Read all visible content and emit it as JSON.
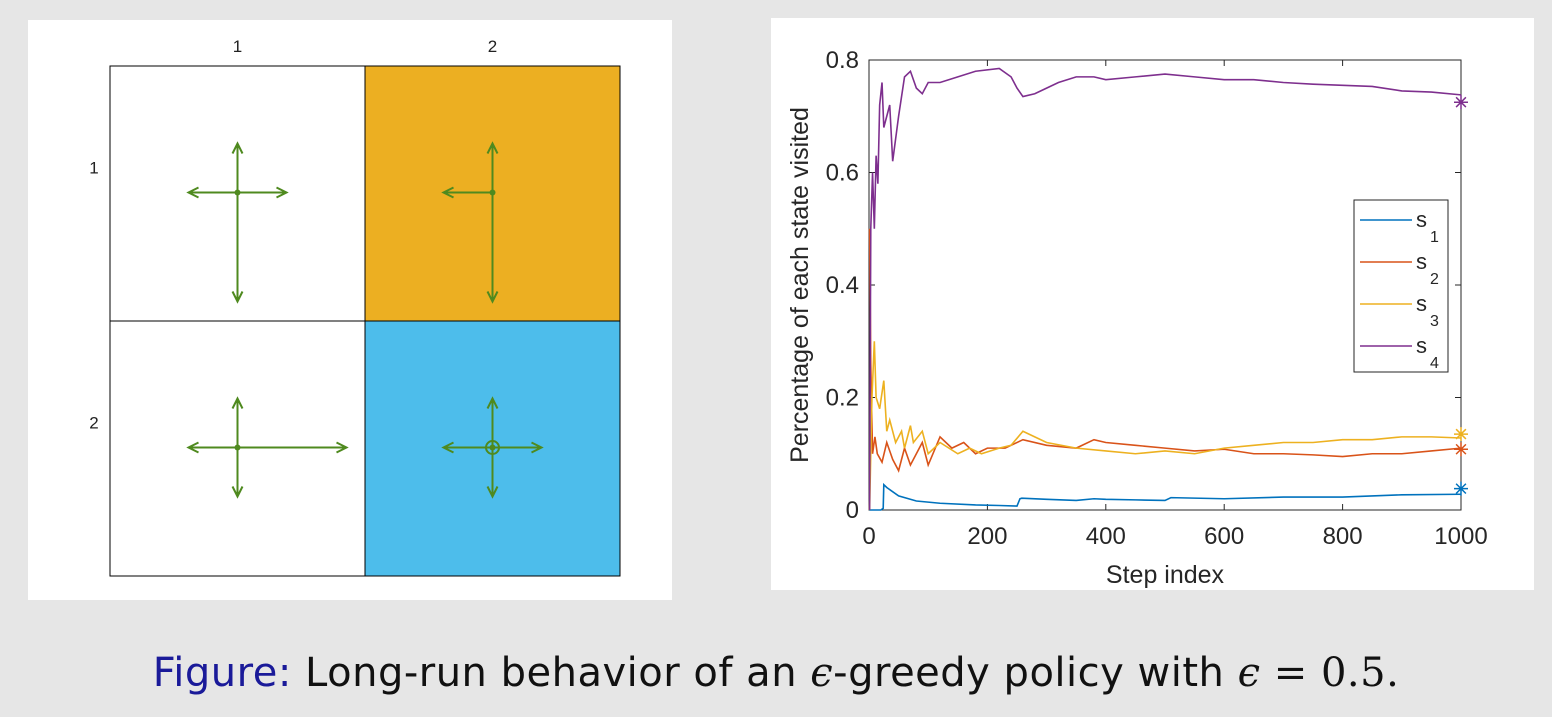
{
  "grid": {
    "col_labels": [
      "1",
      "2"
    ],
    "row_labels": [
      "1",
      "2"
    ],
    "cells": [
      {
        "row": 1,
        "col": 1,
        "color": "#ffffff",
        "arrows": {
          "up": 0.125,
          "down": 0.625,
          "left": 0.125,
          "right": 0.125,
          "stay": 0
        }
      },
      {
        "row": 1,
        "col": 2,
        "color": "#ecaf22",
        "arrows": {
          "up": 0.125,
          "down": 0.625,
          "left": 0.125,
          "right": 0,
          "stay": 0
        }
      },
      {
        "row": 2,
        "col": 1,
        "color": "#ffffff",
        "arrows": {
          "up": 0.125,
          "down": 0.125,
          "left": 0.125,
          "right": 0.625,
          "stay": 0
        }
      },
      {
        "row": 2,
        "col": 2,
        "color": "#4dbdeb",
        "arrows": {
          "up": 0.125,
          "down": 0.125,
          "left": 0.125,
          "right": 0.125,
          "stay": 0.5
        }
      }
    ],
    "arrow_color": "#4f8a1f"
  },
  "chart_data": {
    "type": "line",
    "xlabel": "Step index",
    "ylabel": "Percentage of each state visited",
    "xlim": [
      0,
      1000
    ],
    "ylim": [
      0,
      0.8
    ],
    "xticks": [
      0,
      200,
      400,
      600,
      800,
      1000
    ],
    "yticks": [
      0,
      0.2,
      0.4,
      0.6,
      0.8
    ],
    "ytick_labels": [
      "0",
      "0.2",
      "0.4",
      "0.6",
      "0.8"
    ],
    "grid": false,
    "legend_position": "right, middle",
    "series": [
      {
        "name": "s",
        "subscript": "1",
        "color": "#0072bd",
        "x": [
          1,
          20,
          24,
          25,
          30,
          50,
          80,
          120,
          180,
          220,
          250,
          255,
          258,
          300,
          350,
          380,
          400,
          450,
          500,
          510,
          600,
          700,
          800,
          900,
          1000
        ],
        "y": [
          0,
          0,
          0.003,
          0.045,
          0.04,
          0.025,
          0.016,
          0.012,
          0.009,
          0.008,
          0.007,
          0.02,
          0.021,
          0.019,
          0.017,
          0.02,
          0.019,
          0.018,
          0.017,
          0.022,
          0.02,
          0.023,
          0.023,
          0.027,
          0.028
        ],
        "end_marker": 0.038
      },
      {
        "name": "s",
        "subscript": "2",
        "color": "#d95319",
        "x": [
          1,
          3,
          6,
          10,
          14,
          22,
          30,
          40,
          50,
          60,
          70,
          80,
          90,
          100,
          120,
          140,
          160,
          180,
          200,
          230,
          260,
          300,
          350,
          380,
          400,
          450,
          500,
          550,
          600,
          650,
          700,
          750,
          800,
          850,
          900,
          950,
          1000
        ],
        "y": [
          0.5,
          0.26,
          0.1,
          0.13,
          0.1,
          0.085,
          0.12,
          0.09,
          0.07,
          0.11,
          0.08,
          0.1,
          0.12,
          0.08,
          0.13,
          0.11,
          0.12,
          0.1,
          0.11,
          0.11,
          0.125,
          0.115,
          0.11,
          0.125,
          0.12,
          0.115,
          0.11,
          0.105,
          0.108,
          0.1,
          0.1,
          0.098,
          0.095,
          0.1,
          0.1,
          0.105,
          0.11
        ],
        "end_marker": 0.108
      },
      {
        "name": "s",
        "subscript": "3",
        "color": "#edb120",
        "x": [
          1,
          5,
          9,
          12,
          18,
          25,
          30,
          35,
          45,
          55,
          60,
          70,
          75,
          90,
          100,
          120,
          150,
          170,
          190,
          220,
          240,
          260,
          280,
          300,
          350,
          400,
          450,
          500,
          550,
          600,
          650,
          700,
          750,
          800,
          850,
          900,
          950,
          1000
        ],
        "y": [
          0,
          0.2,
          0.3,
          0.2,
          0.18,
          0.23,
          0.14,
          0.16,
          0.12,
          0.14,
          0.11,
          0.15,
          0.12,
          0.14,
          0.1,
          0.12,
          0.1,
          0.11,
          0.1,
          0.11,
          0.115,
          0.14,
          0.13,
          0.12,
          0.11,
          0.105,
          0.1,
          0.105,
          0.1,
          0.11,
          0.115,
          0.12,
          0.12,
          0.125,
          0.125,
          0.13,
          0.13,
          0.128
        ],
        "end_marker": 0.135
      },
      {
        "name": "s",
        "subscript": "4",
        "color": "#7e2f8e",
        "x": [
          1,
          3,
          6,
          9,
          12,
          15,
          18,
          22,
          25,
          30,
          35,
          40,
          45,
          50,
          60,
          70,
          80,
          90,
          100,
          120,
          150,
          180,
          220,
          240,
          250,
          260,
          280,
          300,
          320,
          350,
          380,
          400,
          450,
          500,
          550,
          600,
          650,
          700,
          750,
          800,
          850,
          900,
          950,
          1000
        ],
        "y": [
          0,
          0.5,
          0.6,
          0.5,
          0.63,
          0.58,
          0.72,
          0.76,
          0.68,
          0.7,
          0.72,
          0.62,
          0.66,
          0.7,
          0.77,
          0.78,
          0.75,
          0.74,
          0.76,
          0.76,
          0.77,
          0.78,
          0.785,
          0.77,
          0.75,
          0.735,
          0.74,
          0.75,
          0.76,
          0.77,
          0.77,
          0.765,
          0.77,
          0.775,
          0.77,
          0.765,
          0.765,
          0.76,
          0.757,
          0.755,
          0.753,
          0.745,
          0.743,
          0.738
        ],
        "end_marker": 0.725
      }
    ]
  },
  "caption": {
    "prefix": "Figure:",
    "text": "Long-run behavior of an",
    "epsilon": "ϵ",
    "text2": "-greedy policy with",
    "epsilon2": "ϵ",
    "equals": "=",
    "value": "0.5."
  }
}
